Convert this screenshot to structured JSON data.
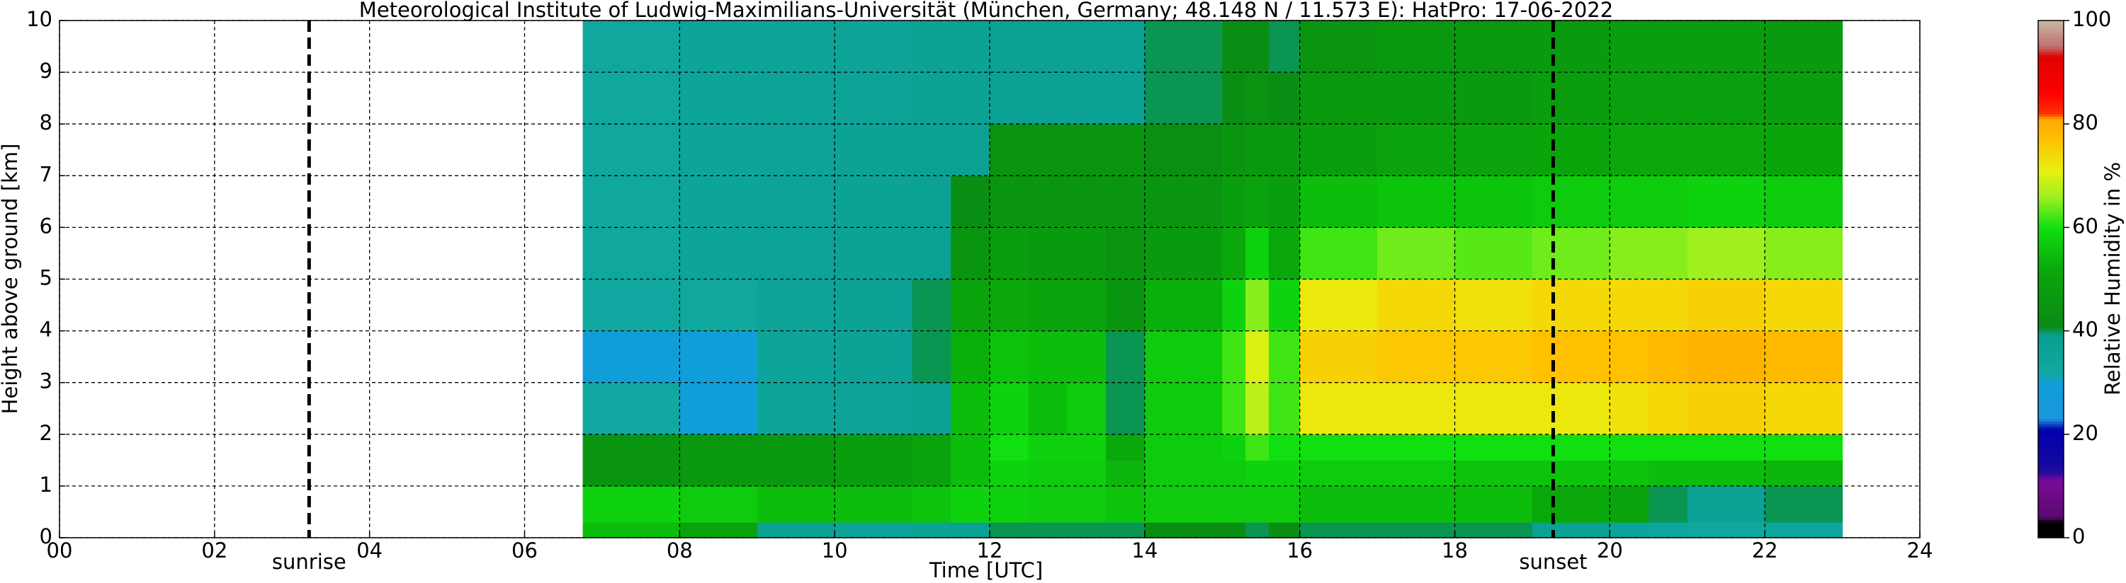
{
  "chart_data": {
    "type": "heatmap",
    "title": "Meteorological Institute of Ludwig-Maximilians-Universität (München, Germany; 48.148 N / 11.573 E):    HatPro: 17-06-2022",
    "xlabel": "Time [UTC]",
    "ylabel": "Height above ground [km]",
    "colorbar_label": "Relative Humidity in %",
    "xlim": [
      0,
      24
    ],
    "ylim": [
      0,
      10
    ],
    "clim": [
      0,
      100
    ],
    "xticks": [
      {
        "value": 0,
        "label": "00"
      },
      {
        "value": 2,
        "label": "02"
      },
      {
        "value": 4,
        "label": "04"
      },
      {
        "value": 6,
        "label": "06"
      },
      {
        "value": 8,
        "label": "08"
      },
      10,
      12,
      14,
      16,
      18,
      20,
      22,
      24
    ],
    "yticks": [
      0,
      1,
      2,
      3,
      4,
      5,
      6,
      7,
      8,
      9,
      10
    ],
    "cticks": [
      0,
      20,
      40,
      60,
      80,
      100
    ],
    "grid": true,
    "annotations": [
      {
        "label": "sunrise",
        "x": 3.22
      },
      {
        "label": "sunset",
        "x": 19.27
      }
    ],
    "colorscale": [
      [
        0,
        "#000000"
      ],
      [
        3,
        "#000000"
      ],
      [
        4,
        "#5a0a6e"
      ],
      [
        11,
        "#7b0a9b"
      ],
      [
        13,
        "#1a0a9e"
      ],
      [
        21,
        "#0000b0"
      ],
      [
        23,
        "#1a96e0"
      ],
      [
        30,
        "#109ed8"
      ],
      [
        32,
        "#10a8a0"
      ],
      [
        39,
        "#0aa092"
      ],
      [
        41,
        "#0a8a14"
      ],
      [
        52,
        "#0aa80a"
      ],
      [
        60,
        "#10e010"
      ],
      [
        66,
        "#a0f020"
      ],
      [
        71,
        "#e8f010"
      ],
      [
        77,
        "#ffc000"
      ],
      [
        81,
        "#ffa800"
      ],
      [
        82,
        "#ff3000"
      ],
      [
        86,
        "#ff0000"
      ],
      [
        93,
        "#e00000"
      ],
      [
        95,
        "#c07070"
      ],
      [
        100,
        "#c8b8a0"
      ]
    ],
    "x_bins": [
      6.75,
      8,
      9,
      10,
      11,
      11.5,
      12,
      12.5,
      13,
      13.5,
      14,
      15,
      15.3,
      15.6,
      16,
      17,
      18,
      19,
      20,
      20.5,
      21,
      22,
      23
    ],
    "y_bins": [
      0,
      0.3,
      1,
      1.5,
      2,
      3,
      4,
      5,
      6,
      7,
      8,
      9,
      10
    ],
    "values": [
      [
        55,
        58,
        45,
        45,
        32,
        30,
        32,
        33,
        33,
        33,
        33,
        33
      ],
      [
        50,
        57,
        46,
        46,
        30,
        30,
        33,
        35,
        35,
        35,
        35,
        35
      ],
      [
        38,
        55,
        47,
        47,
        35,
        35,
        36,
        36,
        36,
        36,
        36,
        36
      ],
      [
        36,
        55,
        48,
        48,
        36,
        37,
        37,
        37,
        37,
        37,
        36,
        36
      ],
      [
        37,
        56,
        50,
        50,
        38,
        40,
        40,
        38,
        38,
        38,
        37,
        37
      ],
      [
        38,
        58,
        55,
        55,
        55,
        53,
        50,
        45,
        42,
        38,
        37,
        37
      ],
      [
        40,
        58,
        58,
        60,
        58,
        56,
        52,
        48,
        45,
        44,
        38,
        38
      ],
      [
        40,
        57,
        57,
        58,
        55,
        55,
        50,
        47,
        45,
        44,
        38,
        38
      ],
      [
        40,
        57,
        57,
        58,
        57,
        55,
        50,
        47,
        45,
        44,
        38,
        38
      ],
      [
        40,
        56,
        54,
        52,
        40,
        40,
        45,
        45,
        45,
        45,
        38,
        38
      ],
      [
        42,
        57,
        57,
        57,
        57,
        57,
        53,
        47,
        45,
        43,
        40,
        40
      ],
      [
        42,
        57,
        57,
        58,
        62,
        62,
        58,
        52,
        48,
        45,
        42,
        42
      ],
      [
        40,
        57,
        58,
        62,
        68,
        70,
        65,
        58,
        50,
        46,
        44,
        42
      ],
      [
        42,
        57,
        58,
        60,
        62,
        62,
        58,
        52,
        48,
        46,
        42,
        40
      ],
      [
        40,
        55,
        57,
        60,
        72,
        75,
        72,
        62,
        55,
        48,
        46,
        45
      ],
      [
        40,
        55,
        57,
        60,
        72,
        76,
        74,
        64,
        56,
        50,
        47,
        46
      ],
      [
        40,
        55,
        56,
        60,
        72,
        76,
        73,
        63,
        56,
        50,
        47,
        46
      ],
      [
        38,
        52,
        56,
        60,
        72,
        77,
        74,
        64,
        57,
        51,
        48,
        47
      ],
      [
        36,
        50,
        56,
        60,
        73,
        77,
        74,
        65,
        57,
        52,
        49,
        48
      ],
      [
        34,
        40,
        55,
        60,
        74,
        78,
        74,
        65,
        57,
        52,
        49,
        48
      ],
      [
        33,
        38,
        55,
        60,
        75,
        79,
        75,
        66,
        58,
        52,
        49,
        48
      ],
      [
        34,
        40,
        54,
        60,
        74,
        78,
        74,
        65,
        57,
        51,
        48,
        47
      ]
    ]
  }
}
